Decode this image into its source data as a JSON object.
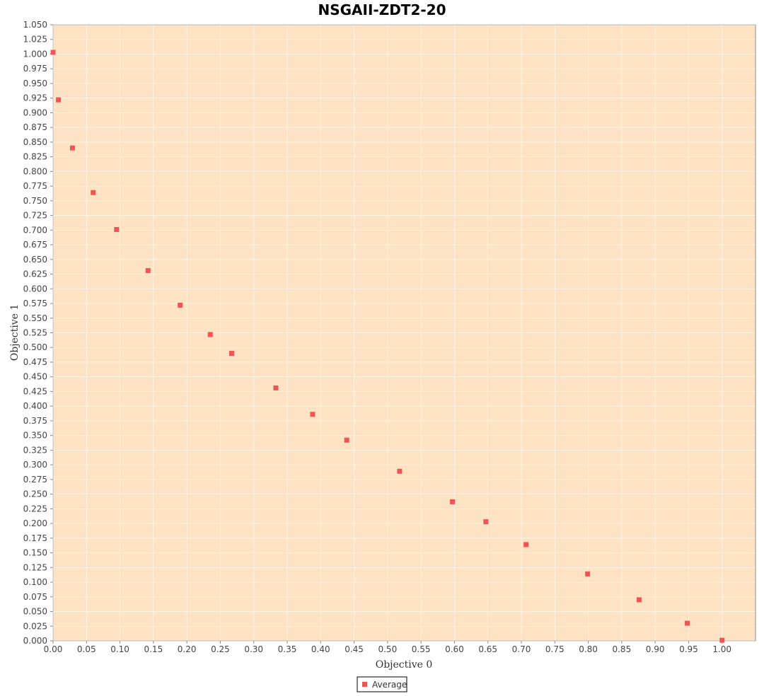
{
  "chart_data": {
    "type": "scatter",
    "title": "NSGAII-ZDT2-20",
    "xlabel": "Objective 0",
    "ylabel": "Objective 1",
    "xlim": [
      0.0,
      1.05
    ],
    "ylim": [
      0.0,
      1.05
    ],
    "xticks": [
      "0.00",
      "0.05",
      "0.10",
      "0.15",
      "0.20",
      "0.25",
      "0.30",
      "0.35",
      "0.40",
      "0.45",
      "0.50",
      "0.55",
      "0.60",
      "0.65",
      "0.70",
      "0.75",
      "0.80",
      "0.85",
      "0.90",
      "0.95",
      "1.00"
    ],
    "yticks": [
      "0.000",
      "0.025",
      "0.050",
      "0.075",
      "0.100",
      "0.125",
      "0.150",
      "0.175",
      "0.200",
      "0.225",
      "0.250",
      "0.275",
      "0.300",
      "0.325",
      "0.350",
      "0.375",
      "0.400",
      "0.425",
      "0.450",
      "0.475",
      "0.500",
      "0.525",
      "0.550",
      "0.575",
      "0.600",
      "0.625",
      "0.650",
      "0.675",
      "0.700",
      "0.725",
      "0.750",
      "0.775",
      "0.800",
      "0.825",
      "0.850",
      "0.875",
      "0.900",
      "0.925",
      "0.950",
      "0.975",
      "1.000",
      "1.025",
      "1.050"
    ],
    "grid": true,
    "legend_position": "bottom-center",
    "series": [
      {
        "name": "Average",
        "color": "#f05555",
        "x": [
          0.0,
          0.008,
          0.029,
          0.06,
          0.095,
          0.142,
          0.19,
          0.235,
          0.267,
          0.333,
          0.388,
          0.439,
          0.518,
          0.597,
          0.647,
          0.707,
          0.799,
          0.876,
          0.948,
          1.0
        ],
        "y": [
          1.003,
          0.922,
          0.84,
          0.764,
          0.701,
          0.631,
          0.572,
          0.522,
          0.49,
          0.431,
          0.386,
          0.342,
          0.289,
          0.237,
          0.203,
          0.164,
          0.114,
          0.07,
          0.03,
          0.001
        ]
      }
    ]
  },
  "colors": {
    "plot_background": "#fde3c3",
    "gridline": "#ffffff",
    "axis": "#888888",
    "marker": "#f05555"
  }
}
